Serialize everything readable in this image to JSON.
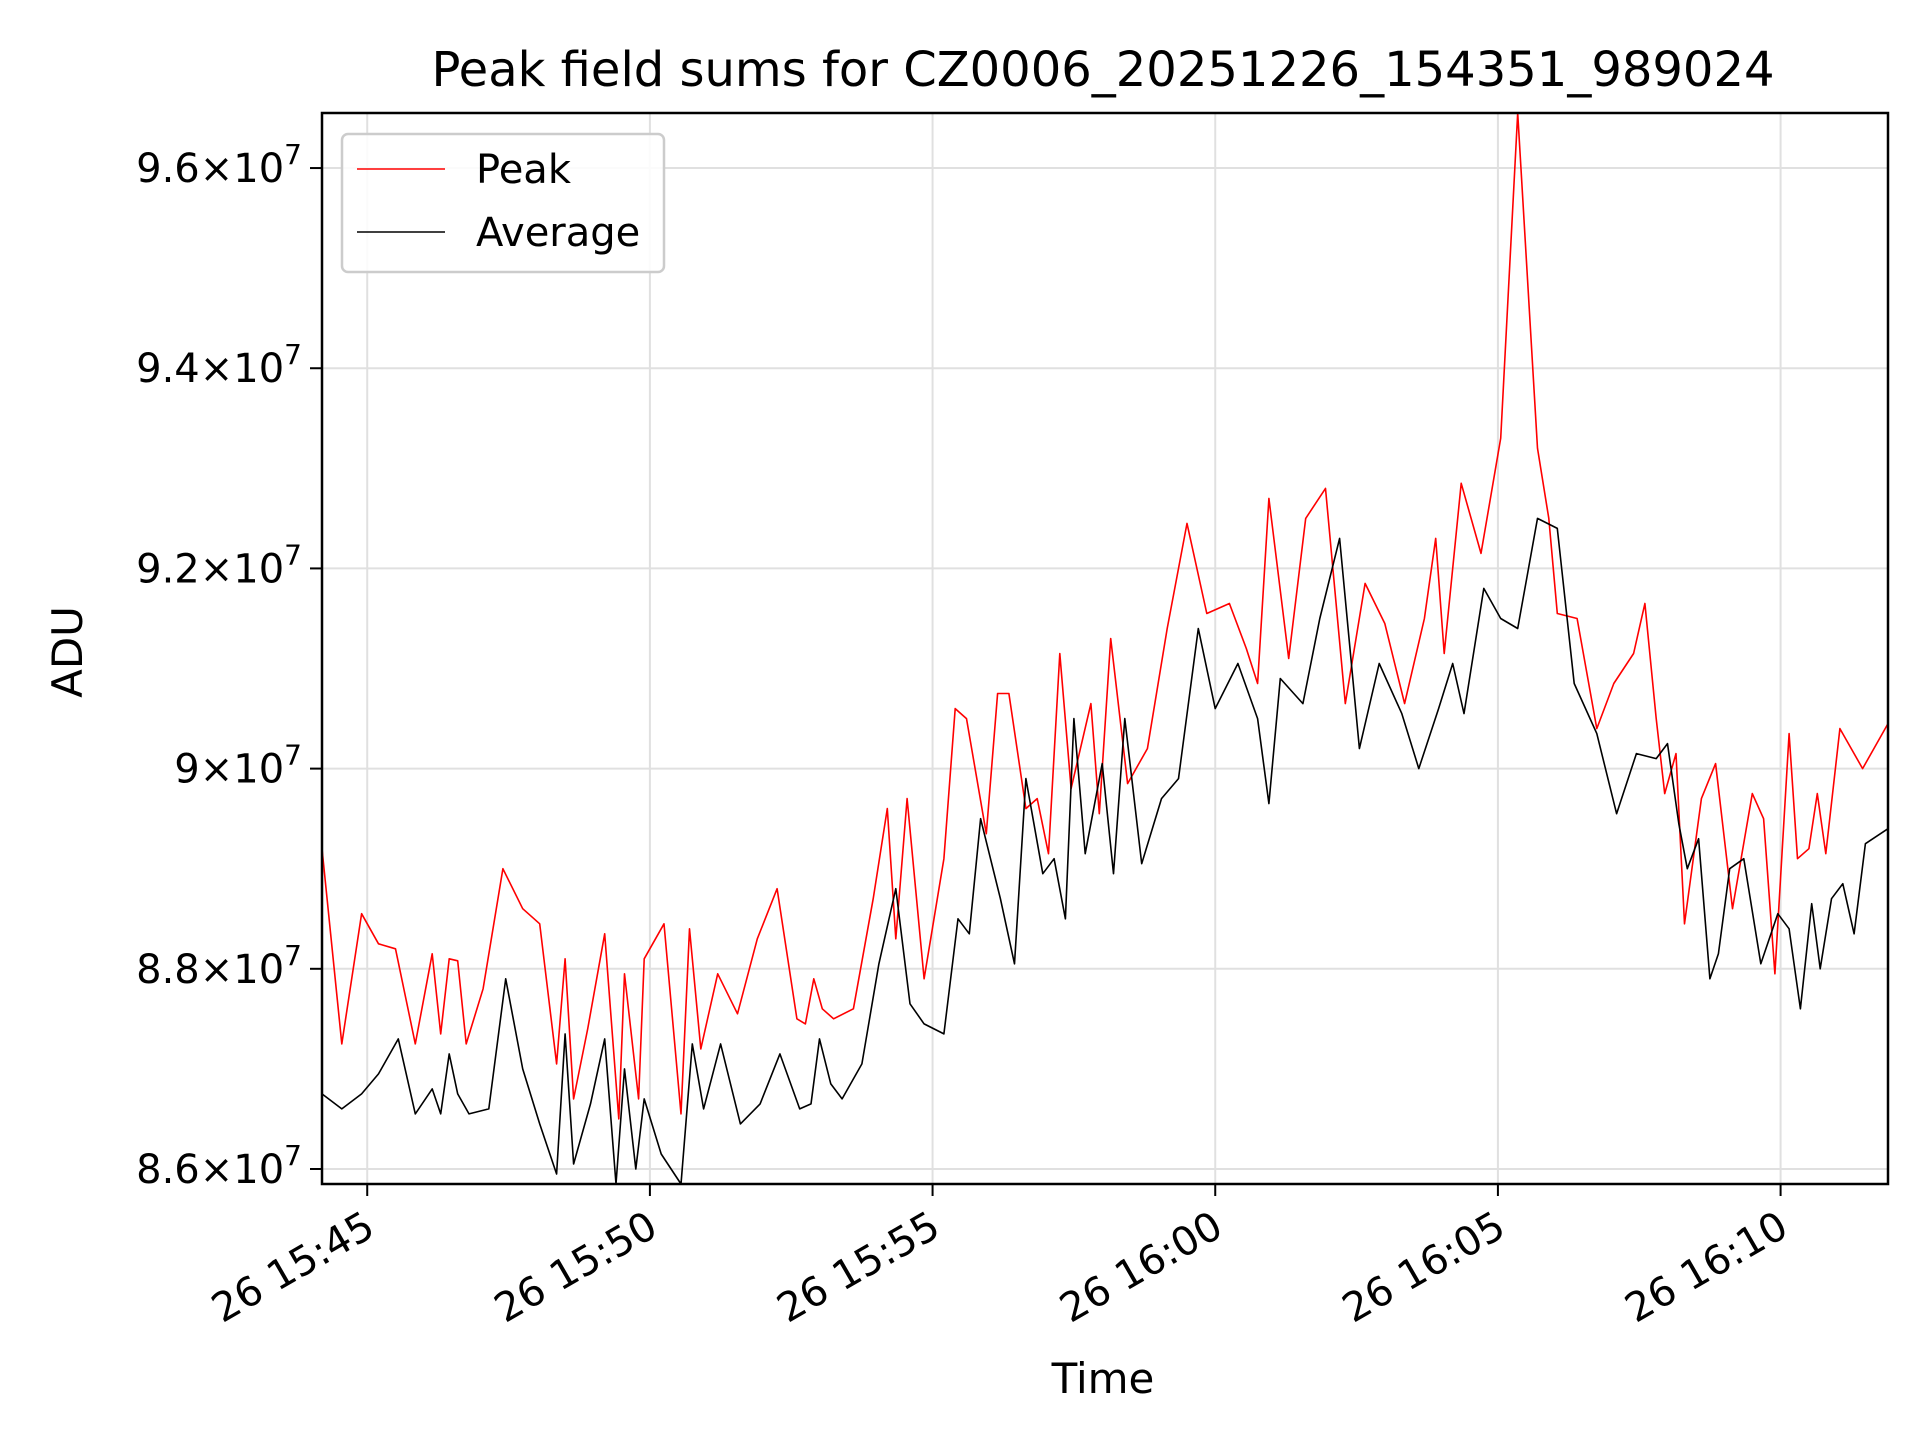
{
  "chart_data": {
    "type": "line",
    "title": "Peak field sums for CZ0006_20251226_154351_989024",
    "xlabel": "Time",
    "ylabel": "ADU",
    "grid": true,
    "legend_position": "upper-left",
    "x_unit": "minutes after 26 15:00",
    "xlim": [
      44.2,
      71.9
    ],
    "ylim": [
      85850000,
      96550000
    ],
    "x_ticks": [
      {
        "value": 45,
        "label": "26 15:45"
      },
      {
        "value": 50,
        "label": "26 15:50"
      },
      {
        "value": 55,
        "label": "26 15:55"
      },
      {
        "value": 60,
        "label": "26 16:00"
      },
      {
        "value": 65,
        "label": "26 16:05"
      },
      {
        "value": 70,
        "label": "26 16:10"
      }
    ],
    "y_ticks": [
      {
        "value": 86000000,
        "mantissa": "8.6",
        "exponent": "7"
      },
      {
        "value": 88000000,
        "mantissa": "8.8",
        "exponent": "7"
      },
      {
        "value": 90000000,
        "mantissa": "9",
        "exponent": "7"
      },
      {
        "value": 92000000,
        "mantissa": "9.2",
        "exponent": "7"
      },
      {
        "value": 94000000,
        "mantissa": "9.4",
        "exponent": "7"
      },
      {
        "value": 96000000,
        "mantissa": "9.6",
        "exponent": "7"
      }
    ],
    "times_shared_ref": "series[].points are [minutes, ADU] pairs",
    "series": [
      {
        "name": "Peak",
        "color": "#ff0000",
        "points": [
          [
            44.2,
            89200000
          ],
          [
            44.55,
            87250000
          ],
          [
            44.9,
            88550000
          ],
          [
            45.2,
            88250000
          ],
          [
            45.5,
            88200000
          ],
          [
            45.85,
            87250000
          ],
          [
            46.15,
            88150000
          ],
          [
            46.3,
            87350000
          ],
          [
            46.45,
            88100000
          ],
          [
            46.6,
            88080000
          ],
          [
            46.75,
            87250000
          ],
          [
            47.05,
            87800000
          ],
          [
            47.4,
            89000000
          ],
          [
            47.75,
            88600000
          ],
          [
            48.05,
            88450000
          ],
          [
            48.35,
            87050000
          ],
          [
            48.5,
            88100000
          ],
          [
            48.65,
            86700000
          ],
          [
            48.9,
            87400000
          ],
          [
            49.2,
            88350000
          ],
          [
            49.45,
            86500000
          ],
          [
            49.55,
            87950000
          ],
          [
            49.8,
            86700000
          ],
          [
            49.9,
            88100000
          ],
          [
            50.25,
            88450000
          ],
          [
            50.55,
            86550000
          ],
          [
            50.7,
            88400000
          ],
          [
            50.9,
            87200000
          ],
          [
            51.2,
            87950000
          ],
          [
            51.55,
            87550000
          ],
          [
            51.9,
            88300000
          ],
          [
            52.25,
            88800000
          ],
          [
            52.6,
            87500000
          ],
          [
            52.75,
            87450000
          ],
          [
            52.9,
            87900000
          ],
          [
            53.05,
            87600000
          ],
          [
            53.25,
            87500000
          ],
          [
            53.6,
            87600000
          ],
          [
            53.95,
            88700000
          ],
          [
            54.2,
            89600000
          ],
          [
            54.35,
            88300000
          ],
          [
            54.55,
            89700000
          ],
          [
            54.85,
            87900000
          ],
          [
            55.2,
            89100000
          ],
          [
            55.4,
            90600000
          ],
          [
            55.6,
            90500000
          ],
          [
            55.95,
            89350000
          ],
          [
            56.15,
            90750000
          ],
          [
            56.35,
            90750000
          ],
          [
            56.65,
            89600000
          ],
          [
            56.85,
            89700000
          ],
          [
            57.05,
            89150000
          ],
          [
            57.25,
            91150000
          ],
          [
            57.45,
            89800000
          ],
          [
            57.8,
            90650000
          ],
          [
            57.95,
            89550000
          ],
          [
            58.15,
            91300000
          ],
          [
            58.45,
            89850000
          ],
          [
            58.8,
            90200000
          ],
          [
            59.15,
            91400000
          ],
          [
            59.5,
            92450000
          ],
          [
            59.85,
            91550000
          ],
          [
            60.25,
            91650000
          ],
          [
            60.55,
            91200000
          ],
          [
            60.75,
            90850000
          ],
          [
            60.95,
            92700000
          ],
          [
            61.3,
            91100000
          ],
          [
            61.6,
            92500000
          ],
          [
            61.95,
            92800000
          ],
          [
            62.3,
            90650000
          ],
          [
            62.65,
            91850000
          ],
          [
            63.0,
            91450000
          ],
          [
            63.35,
            90650000
          ],
          [
            63.7,
            91500000
          ],
          [
            63.9,
            92300000
          ],
          [
            64.05,
            91150000
          ],
          [
            64.35,
            92850000
          ],
          [
            64.7,
            92150000
          ],
          [
            65.05,
            93300000
          ],
          [
            65.35,
            96550000
          ],
          [
            65.7,
            93200000
          ],
          [
            65.9,
            92500000
          ],
          [
            66.05,
            91550000
          ],
          [
            66.4,
            91500000
          ],
          [
            66.75,
            90400000
          ],
          [
            67.05,
            90850000
          ],
          [
            67.4,
            91150000
          ],
          [
            67.6,
            91650000
          ],
          [
            67.8,
            90500000
          ],
          [
            67.95,
            89750000
          ],
          [
            68.15,
            90150000
          ],
          [
            68.3,
            88450000
          ],
          [
            68.6,
            89700000
          ],
          [
            68.85,
            90050000
          ],
          [
            69.15,
            88600000
          ],
          [
            69.5,
            89750000
          ],
          [
            69.7,
            89500000
          ],
          [
            69.9,
            87950000
          ],
          [
            70.15,
            90350000
          ],
          [
            70.3,
            89100000
          ],
          [
            70.5,
            89200000
          ],
          [
            70.65,
            89750000
          ],
          [
            70.8,
            89150000
          ],
          [
            71.05,
            90400000
          ],
          [
            71.45,
            90000000
          ],
          [
            71.9,
            90450000
          ]
        ]
      },
      {
        "name": "Average",
        "color": "#000000",
        "points": [
          [
            44.2,
            86750000
          ],
          [
            44.55,
            86600000
          ],
          [
            44.9,
            86750000
          ],
          [
            45.2,
            86950000
          ],
          [
            45.55,
            87300000
          ],
          [
            45.85,
            86550000
          ],
          [
            46.15,
            86800000
          ],
          [
            46.3,
            86550000
          ],
          [
            46.45,
            87150000
          ],
          [
            46.6,
            86750000
          ],
          [
            46.8,
            86550000
          ],
          [
            47.15,
            86600000
          ],
          [
            47.45,
            87900000
          ],
          [
            47.75,
            87000000
          ],
          [
            48.05,
            86450000
          ],
          [
            48.35,
            85950000
          ],
          [
            48.5,
            87350000
          ],
          [
            48.65,
            86050000
          ],
          [
            48.95,
            86650000
          ],
          [
            49.2,
            87300000
          ],
          [
            49.4,
            85850000
          ],
          [
            49.55,
            87000000
          ],
          [
            49.75,
            86000000
          ],
          [
            49.9,
            86700000
          ],
          [
            50.2,
            86150000
          ],
          [
            50.55,
            85850000
          ],
          [
            50.75,
            87250000
          ],
          [
            50.95,
            86600000
          ],
          [
            51.25,
            87250000
          ],
          [
            51.6,
            86450000
          ],
          [
            51.95,
            86650000
          ],
          [
            52.3,
            87150000
          ],
          [
            52.65,
            86600000
          ],
          [
            52.85,
            86650000
          ],
          [
            53.0,
            87300000
          ],
          [
            53.2,
            86850000
          ],
          [
            53.4,
            86700000
          ],
          [
            53.75,
            87050000
          ],
          [
            54.05,
            88050000
          ],
          [
            54.35,
            88800000
          ],
          [
            54.6,
            87650000
          ],
          [
            54.85,
            87450000
          ],
          [
            55.2,
            87350000
          ],
          [
            55.45,
            88500000
          ],
          [
            55.65,
            88350000
          ],
          [
            55.85,
            89500000
          ],
          [
            56.2,
            88700000
          ],
          [
            56.45,
            88050000
          ],
          [
            56.65,
            89900000
          ],
          [
            56.95,
            88950000
          ],
          [
            57.15,
            89100000
          ],
          [
            57.35,
            88500000
          ],
          [
            57.5,
            90500000
          ],
          [
            57.7,
            89150000
          ],
          [
            58.0,
            90050000
          ],
          [
            58.2,
            88950000
          ],
          [
            58.4,
            90500000
          ],
          [
            58.7,
            89050000
          ],
          [
            59.05,
            89700000
          ],
          [
            59.35,
            89900000
          ],
          [
            59.7,
            91400000
          ],
          [
            60.0,
            90600000
          ],
          [
            60.4,
            91050000
          ],
          [
            60.75,
            90500000
          ],
          [
            60.95,
            89650000
          ],
          [
            61.15,
            90900000
          ],
          [
            61.55,
            90650000
          ],
          [
            61.85,
            91500000
          ],
          [
            62.2,
            92300000
          ],
          [
            62.55,
            90200000
          ],
          [
            62.9,
            91050000
          ],
          [
            63.3,
            90550000
          ],
          [
            63.6,
            90000000
          ],
          [
            63.95,
            90600000
          ],
          [
            64.2,
            91050000
          ],
          [
            64.4,
            90550000
          ],
          [
            64.75,
            91800000
          ],
          [
            65.05,
            91500000
          ],
          [
            65.35,
            91400000
          ],
          [
            65.7,
            92500000
          ],
          [
            66.05,
            92400000
          ],
          [
            66.35,
            90850000
          ],
          [
            66.75,
            90350000
          ],
          [
            67.1,
            89550000
          ],
          [
            67.45,
            90150000
          ],
          [
            67.8,
            90100000
          ],
          [
            68.0,
            90250000
          ],
          [
            68.2,
            89450000
          ],
          [
            68.35,
            89000000
          ],
          [
            68.55,
            89300000
          ],
          [
            68.75,
            87900000
          ],
          [
            68.9,
            88150000
          ],
          [
            69.1,
            89000000
          ],
          [
            69.35,
            89100000
          ],
          [
            69.65,
            88050000
          ],
          [
            69.95,
            88550000
          ],
          [
            70.15,
            88400000
          ],
          [
            70.35,
            87600000
          ],
          [
            70.55,
            88650000
          ],
          [
            70.7,
            88000000
          ],
          [
            70.9,
            88700000
          ],
          [
            71.1,
            88850000
          ],
          [
            71.3,
            88350000
          ],
          [
            71.5,
            89250000
          ],
          [
            71.9,
            89400000
          ]
        ]
      }
    ]
  }
}
